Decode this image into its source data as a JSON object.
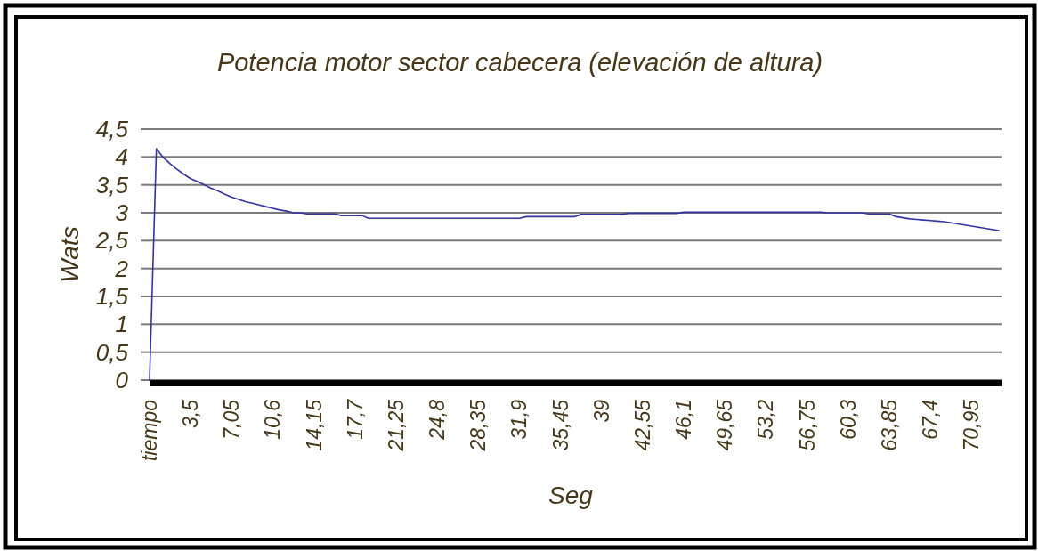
{
  "chart_data": {
    "type": "line",
    "title": "Potencia motor sector cabecera (elevación de altura)",
    "xlabel": "Seg",
    "ylabel": "Wats",
    "categories": [
      "tiempo",
      null,
      null,
      null,
      null,
      null,
      "3,5",
      null,
      null,
      null,
      null,
      null,
      "7,05",
      null,
      null,
      null,
      null,
      null,
      "10,6",
      null,
      null,
      null,
      null,
      null,
      "14,15",
      null,
      null,
      null,
      null,
      null,
      "17,7",
      null,
      null,
      null,
      null,
      null,
      "21,25",
      null,
      null,
      null,
      null,
      null,
      "24,8",
      null,
      null,
      null,
      null,
      null,
      "28,35",
      null,
      null,
      null,
      null,
      null,
      "31,9",
      null,
      null,
      null,
      null,
      null,
      "35,45",
      null,
      null,
      null,
      null,
      null,
      "39",
      null,
      null,
      null,
      null,
      null,
      "42,55",
      null,
      null,
      null,
      null,
      null,
      "46,1",
      null,
      null,
      null,
      null,
      null,
      "49,65",
      null,
      null,
      null,
      null,
      null,
      "53,2",
      null,
      null,
      null,
      null,
      null,
      "56,75",
      null,
      null,
      null,
      null,
      null,
      "60,3",
      null,
      null,
      null,
      null,
      null,
      "63,85",
      null,
      null,
      null,
      null,
      null,
      "67,4",
      null,
      null,
      null,
      null,
      null,
      "70,95",
      null,
      null,
      null,
      null
    ],
    "series": [
      {
        "color": "#3333a0",
        "values": [
          0,
          4.15,
          3.99,
          3.88,
          3.78,
          3.69,
          3.61,
          3.56,
          3.5,
          3.44,
          3.39,
          3.33,
          3.28,
          3.24,
          3.2,
          3.17,
          3.14,
          3.11,
          3.08,
          3.05,
          3.03,
          3.0,
          3.0,
          2.98,
          2.98,
          2.98,
          2.98,
          2.98,
          2.95,
          2.95,
          2.95,
          2.95,
          2.9,
          2.9,
          2.9,
          2.9,
          2.9,
          2.9,
          2.9,
          2.9,
          2.9,
          2.9,
          2.9,
          2.9,
          2.9,
          2.9,
          2.9,
          2.9,
          2.9,
          2.9,
          2.9,
          2.9,
          2.9,
          2.9,
          2.9,
          2.93,
          2.93,
          2.93,
          2.93,
          2.93,
          2.93,
          2.93,
          2.93,
          2.97,
          2.97,
          2.97,
          2.97,
          2.97,
          2.97,
          2.97,
          2.99,
          2.99,
          2.99,
          2.99,
          2.99,
          2.99,
          2.99,
          2.99,
          3.01,
          3.01,
          3.01,
          3.01,
          3.01,
          3.01,
          3.01,
          3.01,
          3.01,
          3.01,
          3.01,
          3.01,
          3.01,
          3.01,
          3.01,
          3.01,
          3.01,
          3.01,
          3.01,
          3.01,
          3.01,
          3.0,
          3.0,
          3.0,
          3.0,
          3.0,
          3.0,
          2.98,
          2.98,
          2.98,
          2.98,
          2.93,
          2.91,
          2.89,
          2.88,
          2.87,
          2.86,
          2.85,
          2.84,
          2.82,
          2.8,
          2.78,
          2.76,
          2.74,
          2.72,
          2.7,
          2.68
        ]
      }
    ],
    "ylim": [
      0,
      4.5
    ],
    "yticks": [
      0,
      {
        "value": 0.5,
        "label": "0,5"
      },
      1,
      {
        "value": 1.5,
        "label": "1,5"
      },
      2,
      {
        "value": 2.5,
        "label": "2,5"
      },
      3,
      {
        "value": 3.5,
        "label": "3,5"
      },
      4,
      {
        "value": 4.5,
        "label": "4,5"
      }
    ],
    "grid": "y"
  }
}
